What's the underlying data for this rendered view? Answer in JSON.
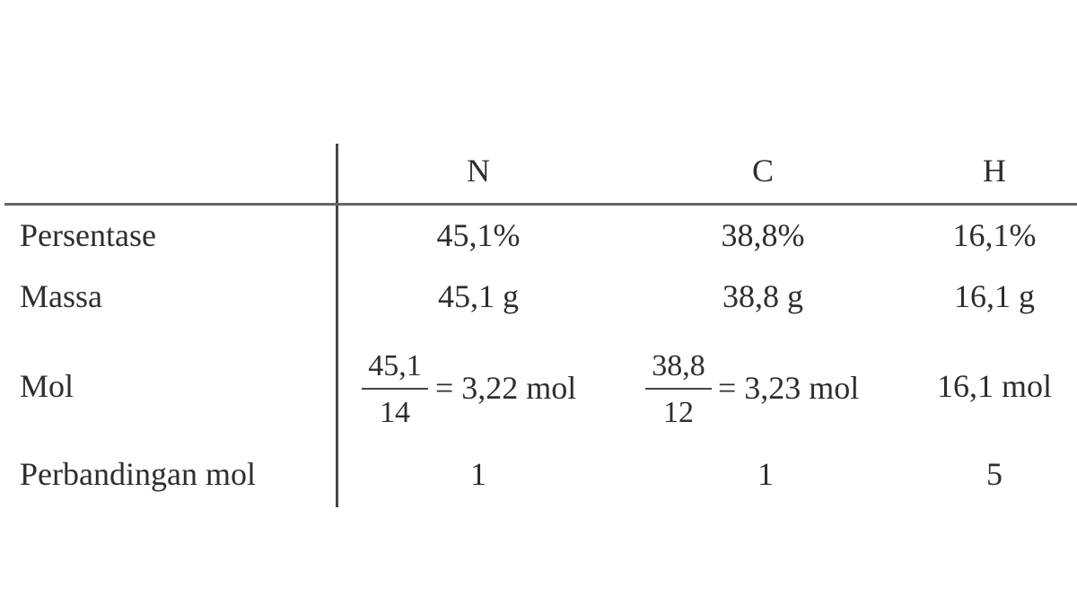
{
  "table": {
    "columns": [
      "N",
      "C",
      "H"
    ],
    "rows": [
      {
        "label": "Persentase",
        "cells": [
          "45,1%",
          "38,8%",
          "16,1%"
        ]
      },
      {
        "label": "Massa",
        "cells": [
          "45,1 g",
          "38,8 g",
          "16,1 g"
        ]
      },
      {
        "label": "Mol",
        "cells": [
          {
            "numerator": "45,1",
            "denominator": "14",
            "result": "= 3,22 mol"
          },
          {
            "numerator": "38,8",
            "denominator": "12",
            "result": "= 3,23 mol"
          },
          "16,1 mol"
        ]
      },
      {
        "label": "Perbandingan mol",
        "cells": [
          "1",
          "1",
          "5"
        ]
      }
    ]
  }
}
